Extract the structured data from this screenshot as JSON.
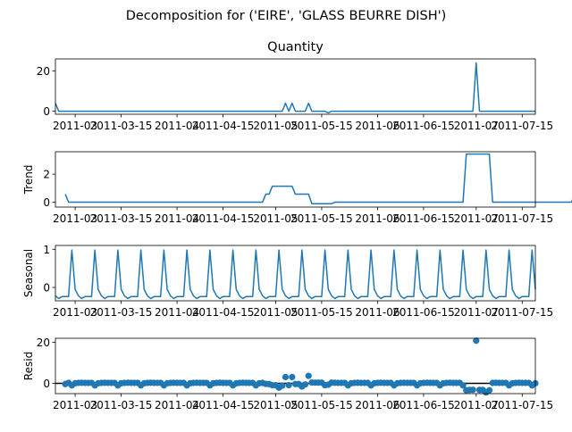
{
  "figure": {
    "suptitle": "Decomposition for ('EIRE', 'GLASS  BEURRE DISH')"
  },
  "chart_data": [
    {
      "type": "line",
      "name": "observed",
      "title": "Quantity",
      "ylabel": "",
      "ylim": [
        -1.5,
        26
      ],
      "yticks": [
        0,
        20
      ],
      "x_start": "2011-02-23",
      "x_end": "2011-07-19",
      "values": [
        4,
        0,
        0,
        0,
        0,
        0,
        0,
        0,
        0,
        0,
        0,
        0,
        0,
        0,
        0,
        0,
        0,
        0,
        0,
        0,
        0,
        0,
        0,
        0,
        0,
        0,
        0,
        0,
        0,
        0,
        0,
        0,
        0,
        0,
        0,
        0,
        0,
        0,
        0,
        0,
        0,
        0,
        0,
        0,
        0,
        0,
        0,
        0,
        0,
        0,
        0,
        0,
        0,
        0,
        0,
        0,
        0,
        0,
        0,
        0,
        0,
        0,
        0,
        0,
        0,
        0,
        0,
        0,
        0,
        0,
        4,
        0,
        4,
        0,
        0,
        0,
        0,
        4,
        0,
        0,
        0,
        0,
        0,
        -0.8,
        0,
        0,
        0,
        0,
        0,
        0,
        0,
        0,
        0,
        0,
        0,
        0,
        0,
        0,
        0,
        0,
        0,
        0,
        0,
        0,
        0,
        0,
        0,
        0,
        0,
        0,
        0,
        0,
        0,
        0,
        0,
        0,
        0,
        0,
        0,
        0,
        0,
        0,
        0,
        0,
        0,
        0,
        0,
        0,
        24,
        0,
        0,
        0,
        0,
        0,
        0,
        0,
        0,
        0,
        0,
        0,
        0,
        0,
        0,
        0,
        0,
        0,
        0,
        0,
        0,
        0,
        0,
        0,
        0,
        0,
        0,
        0,
        0,
        0,
        0,
        4,
        4
      ]
    },
    {
      "type": "line",
      "name": "trend",
      "title": "",
      "ylabel": "Trend",
      "ylim": [
        -0.35,
        3.6
      ],
      "yticks": [
        0,
        2
      ],
      "x_start": "2011-02-23",
      "x_end": "2011-07-19",
      "values": [
        null,
        null,
        null,
        0.57,
        0,
        0,
        0,
        0,
        0,
        0,
        0,
        0,
        0,
        0,
        0,
        0,
        0,
        0,
        0,
        0,
        0,
        0,
        0,
        0,
        0,
        0,
        0,
        0,
        0,
        0,
        0,
        0,
        0,
        0,
        0,
        0,
        0,
        0,
        0,
        0,
        0,
        0,
        0,
        0,
        0,
        0,
        0,
        0,
        0,
        0,
        0,
        0,
        0,
        0,
        0,
        0,
        0,
        0,
        0,
        0,
        0,
        0,
        0,
        0,
        0,
        0,
        0,
        0,
        0,
        0,
        0,
        0,
        0,
        0,
        0,
        0,
        0,
        0,
        0,
        0,
        0,
        0,
        0,
        0,
        0,
        0,
        0,
        0,
        0,
        0,
        0,
        0,
        0,
        0,
        0,
        0,
        0,
        0,
        0,
        0,
        0,
        0,
        0,
        0,
        0,
        0,
        0,
        0,
        0,
        0,
        0,
        0,
        0,
        0,
        0,
        0,
        0,
        0,
        0,
        0,
        0,
        0,
        0,
        0,
        0,
        0,
        0,
        0,
        0,
        0,
        0,
        0,
        0,
        0,
        0,
        0,
        0,
        0,
        0,
        0,
        0,
        0,
        0,
        0,
        0,
        0,
        0,
        0,
        0,
        0,
        0,
        0,
        0,
        0,
        0,
        0,
        0,
        0,
        0,
        0,
        1.14,
        null,
        null,
        null
      ],
      "overrides": [
        [
          64,
          0.57
        ],
        [
          65,
          0.57
        ],
        [
          66,
          1.14
        ],
        [
          67,
          1.14
        ],
        [
          68,
          1.14
        ],
        [
          69,
          1.14
        ],
        [
          70,
          1.14
        ],
        [
          71,
          1.14
        ],
        [
          72,
          1.14
        ],
        [
          73,
          0.57
        ],
        [
          74,
          0.57
        ],
        [
          75,
          0.57
        ],
        [
          76,
          0.57
        ],
        [
          77,
          0.57
        ],
        [
          78,
          -0.11
        ],
        [
          79,
          -0.11
        ],
        [
          80,
          -0.11
        ],
        [
          81,
          -0.11
        ],
        [
          82,
          -0.11
        ],
        [
          83,
          -0.11
        ],
        [
          84,
          -0.11
        ],
        [
          85,
          0
        ],
        [
          125,
          3.43
        ],
        [
          126,
          3.43
        ],
        [
          127,
          3.43
        ],
        [
          128,
          3.43
        ],
        [
          129,
          3.43
        ],
        [
          130,
          3.43
        ],
        [
          131,
          3.43
        ],
        [
          132,
          3.43
        ],
        [
          133,
          0
        ],
        [
          158,
          0.57
        ]
      ]
    },
    {
      "type": "line",
      "name": "seasonal",
      "title": "",
      "ylabel": "Seasonal",
      "ylim": [
        -0.35,
        1.1
      ],
      "yticks": [
        0,
        1
      ],
      "x_start": "2011-02-23",
      "x_end": "2011-07-19",
      "pattern": [
        -0.24,
        0.98,
        -0.05,
        -0.22,
        -0.29,
        -0.24,
        -0.24
      ]
    },
    {
      "type": "scatter",
      "name": "resid",
      "title": "",
      "ylabel": "Resid",
      "ylim": [
        -5,
        22
      ],
      "yticks": [
        0,
        20
      ],
      "x_start": "2011-02-23",
      "x_end": "2011-07-19",
      "notable_points": [
        {
          "date": "2011-06-26",
          "value": 19.5
        },
        {
          "date": "2011-05-09",
          "value": 3.0
        },
        {
          "date": "2011-05-11",
          "value": 3.0
        },
        {
          "date": "2011-05-21",
          "value": 3.5
        },
        {
          "date": "2011-05-09",
          "value": -2.4
        }
      ]
    }
  ],
  "xaxis": {
    "tick_dates": [
      "2011-03-01",
      "2011-03-15",
      "2011-04-01",
      "2011-04-15",
      "2011-05-01",
      "2011-05-15",
      "2011-06-01",
      "2011-06-15",
      "2011-07-01",
      "2011-07-15"
    ],
    "tick_labels": [
      "2011-03",
      "2011-03-15",
      "2011-04",
      "2011-04-15",
      "2011-05",
      "2011-05-15",
      "2011-06",
      "2011-06-15",
      "2011-07",
      "2011-07-15"
    ]
  }
}
